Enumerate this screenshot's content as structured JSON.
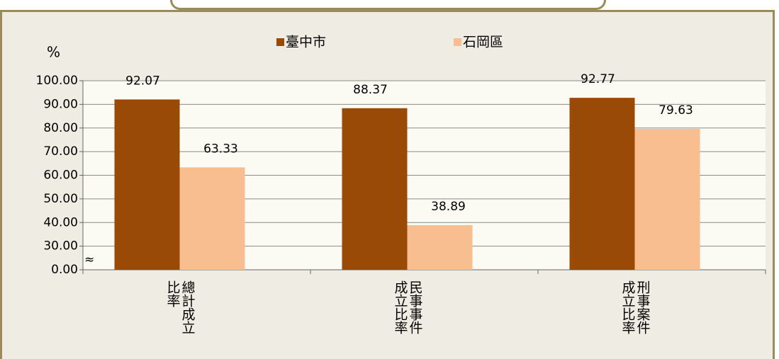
{
  "chart_data": {
    "type": "bar",
    "categories": [
      "總計成立比率",
      "民事事件成立比率",
      "刑事案件成立比率"
    ],
    "series": [
      {
        "name": "臺中市",
        "color": "#994a07",
        "values": [
          92.07,
          88.37,
          92.77
        ]
      },
      {
        "name": "石岡區",
        "color": "#f9be8f",
        "values": [
          63.33,
          38.89,
          79.63
        ]
      }
    ],
    "y_unit": "%",
    "ylim": [
      0,
      100
    ],
    "yticks": [
      {
        "value": 0,
        "label": "0.00"
      },
      {
        "value": 30,
        "label": "30.00"
      },
      {
        "value": 40,
        "label": "40.00"
      },
      {
        "value": 50,
        "label": "50.00"
      },
      {
        "value": 60,
        "label": "60.00"
      },
      {
        "value": 70,
        "label": "70.00"
      },
      {
        "value": 80,
        "label": "80.00"
      },
      {
        "value": 90,
        "label": "90.00"
      },
      {
        "value": 100,
        "label": "100.00"
      }
    ],
    "grid": true
  }
}
